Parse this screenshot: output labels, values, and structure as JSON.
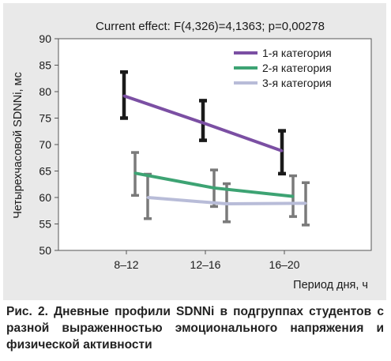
{
  "chart_data": {
    "type": "line",
    "title": "Current effect: F(4,326)=4,1363; p=0,00278",
    "xlabel": "Период дня, ч",
    "ylabel": "Четырехчасовой SDNNi, мс",
    "categories": [
      "8–12",
      "12–16",
      "16–20"
    ],
    "ylim": [
      50,
      90
    ],
    "yticks": [
      50,
      55,
      60,
      65,
      70,
      75,
      80,
      85,
      90
    ],
    "grid": false,
    "legend_position": "top-right",
    "series": [
      {
        "name": "1-я категория",
        "color": "#7b4fa3",
        "errorbar_color": "#1a1a1a",
        "values": [
          79.2,
          74.1,
          68.8
        ],
        "err_low": [
          75.0,
          70.8,
          64.5
        ],
        "err_high": [
          83.7,
          78.3,
          72.6
        ]
      },
      {
        "name": "2-я категория",
        "color": "#3da373",
        "errorbar_color": "#7a7a7a",
        "values": [
          64.6,
          61.8,
          60.2
        ],
        "err_low": [
          60.4,
          58.3,
          56.4
        ],
        "err_high": [
          68.5,
          65.2,
          64.1
        ]
      },
      {
        "name": "3-я категория",
        "color": "#b8bcd8",
        "errorbar_color": "#7a7a7a",
        "values": [
          60.0,
          58.8,
          58.9
        ],
        "err_low": [
          56.0,
          55.4,
          54.8
        ],
        "err_high": [
          64.4,
          62.6,
          62.8
        ]
      }
    ]
  },
  "caption": "Рис. 2. Дневные профили SDNNi в подгруппах студентов с разной выраженностью эмоционального напряжения и физической активности"
}
